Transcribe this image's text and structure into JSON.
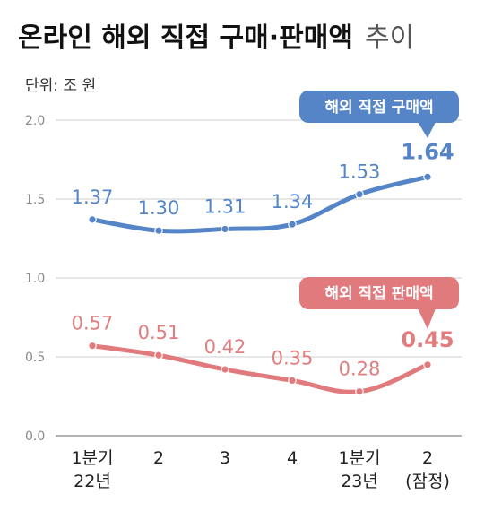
{
  "title": {
    "main": "온라인 해외 직접 구매·판매액",
    "suffix": "추이"
  },
  "unit_label": "단위: 조 원",
  "colors": {
    "purchase": "#5585c6",
    "sales": "#e07a7c",
    "purchase_label": "#5585c6",
    "sales_label": "#e27d7f",
    "grid": "#cfcfcf",
    "axis": "#9a9a9a"
  },
  "chart_data": {
    "type": "line",
    "categories": [
      [
        "1분기",
        "22년"
      ],
      [
        "2"
      ],
      [
        "3"
      ],
      [
        "4"
      ],
      [
        "1분기",
        "23년"
      ],
      [
        "2",
        "(잠정)"
      ]
    ],
    "ylim": [
      0,
      2.0
    ],
    "yticks": [
      "0.0",
      "0.5",
      "1.0",
      "1.5",
      "2.0"
    ],
    "grid": true,
    "series": [
      {
        "name": "해외 직접 구매액",
        "values": [
          1.37,
          1.3,
          1.31,
          1.34,
          1.53,
          1.64
        ],
        "labels": [
          "1.37",
          "1.30",
          "1.31",
          "1.34",
          "1.53",
          "1.64"
        ]
      },
      {
        "name": "해외 직접 판매액",
        "values": [
          0.57,
          0.51,
          0.42,
          0.35,
          0.28,
          0.45
        ],
        "labels": [
          "0.57",
          "0.51",
          "0.42",
          "0.35",
          "0.28",
          "0.45"
        ]
      }
    ]
  }
}
